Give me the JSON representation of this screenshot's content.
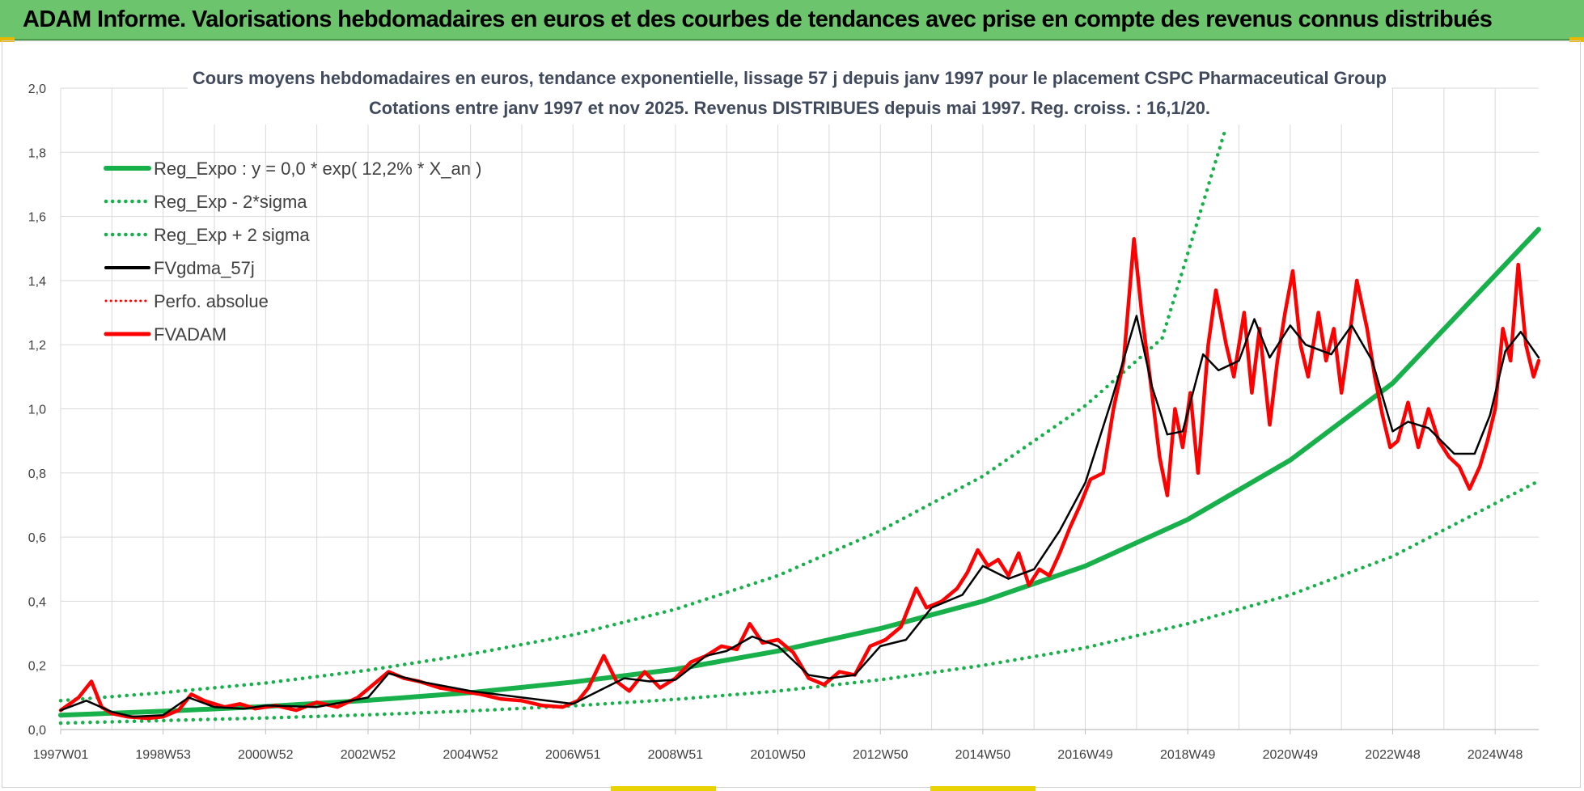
{
  "banner": {
    "title": "ADAM Informe. Valorisations hebdomadaires en euros et des courbes de tendances avec prise en compte des revenus connus distribués"
  },
  "colors": {
    "banner_bg": "#6cc46c",
    "trend_green": "#17b04a",
    "fvadam_red": "#ff0000",
    "smooth_black": "#000000",
    "grid": "#d9d9d9"
  },
  "chart_data": {
    "type": "line",
    "title_line1": "Cours moyens hebdomadaires en euros, tendance exponentielle, lissage 57 j depuis janv 1997  pour le placement CSPC Pharmaceutical Group",
    "title_line2": "Cotations entre janv 1997 et nov 2025. Revenus  DISTRIBUES depuis mai 1997.  Reg. croiss. : 16,1/20.",
    "ylim": [
      0,
      2.0
    ],
    "yticks": [
      "0,0",
      "0,2",
      "0,4",
      "0,6",
      "0,8",
      "1,0",
      "1,2",
      "1,4",
      "1,6",
      "1,8",
      "2,0"
    ],
    "xlim": [
      1997.0,
      2025.85
    ],
    "xticks": [
      {
        "label": "1997W01",
        "year": 1997.0
      },
      {
        "label": "1998W53",
        "year": 1999.0
      },
      {
        "label": "2000W52",
        "year": 2001.0
      },
      {
        "label": "2002W52",
        "year": 2003.0
      },
      {
        "label": "2004W52",
        "year": 2005.0
      },
      {
        "label": "2006W51",
        "year": 2007.0
      },
      {
        "label": "2008W51",
        "year": 2009.0
      },
      {
        "label": "2010W50",
        "year": 2011.0
      },
      {
        "label": "2012W50",
        "year": 2013.0
      },
      {
        "label": "2014W50",
        "year": 2015.0
      },
      {
        "label": "2016W49",
        "year": 2017.0
      },
      {
        "label": "2018W49",
        "year": 2019.0
      },
      {
        "label": "2020W49",
        "year": 2021.0
      },
      {
        "label": "2022W48",
        "year": 2023.0
      },
      {
        "label": "2024W48",
        "year": 2025.0
      }
    ],
    "legend": [
      {
        "key": "reg_expo",
        "label": "Reg_Expo : y = 0,0 * exp( 12,2% *  X_an )",
        "style": "solid-green"
      },
      {
        "key": "reg_minus",
        "label": "Reg_Exp - 2*sigma",
        "style": "dotted-green"
      },
      {
        "key": "reg_plus",
        "label": "Reg_Exp + 2 sigma",
        "style": "dotted-green"
      },
      {
        "key": "fvgdma",
        "label": "FVgdma_57j",
        "style": "solid-black"
      },
      {
        "key": "perfo",
        "label": "Perfo. absolue",
        "style": "dotted-red"
      },
      {
        "key": "fvadam",
        "label": "FVADAM",
        "style": "solid-red"
      }
    ],
    "series": [
      {
        "name": "Reg_Expo",
        "x": [
          1997.0,
          1999.0,
          2001.0,
          2003.0,
          2005.0,
          2007.0,
          2009.0,
          2011.0,
          2013.0,
          2015.0,
          2017.0,
          2019.0,
          2021.0,
          2023.0,
          2025.85
        ],
        "values": [
          0.045,
          0.057,
          0.072,
          0.091,
          0.115,
          0.148,
          0.188,
          0.245,
          0.315,
          0.4,
          0.51,
          0.655,
          0.84,
          1.08,
          1.56
        ]
      },
      {
        "name": "Reg_Exp + 2 sigma",
        "x": [
          1997.0,
          1999.0,
          2001.0,
          2003.0,
          2005.0,
          2007.0,
          2009.0,
          2011.0,
          2013.0,
          2015.0,
          2017.0,
          2018.5,
          2019.75
        ],
        "values": [
          0.09,
          0.115,
          0.145,
          0.185,
          0.235,
          0.295,
          0.375,
          0.48,
          0.62,
          0.79,
          1.01,
          1.22,
          1.88
        ]
      },
      {
        "name": "Reg_Exp - 2*sigma",
        "x": [
          1997.0,
          1999.0,
          2001.0,
          2003.0,
          2005.0,
          2007.0,
          2009.0,
          2011.0,
          2013.0,
          2015.0,
          2017.0,
          2019.0,
          2021.0,
          2023.0,
          2025.85
        ],
        "values": [
          0.02,
          0.028,
          0.036,
          0.046,
          0.058,
          0.074,
          0.094,
          0.12,
          0.155,
          0.2,
          0.255,
          0.33,
          0.42,
          0.54,
          0.775
        ]
      },
      {
        "name": "FVgdma_57j",
        "x": [
          1997.0,
          1997.5,
          1998.0,
          1998.4,
          1999.0,
          1999.5,
          2000.0,
          2000.6,
          2001.0,
          2002.0,
          2003.0,
          2003.4,
          2004.0,
          2005.0,
          2006.0,
          2007.0,
          2007.5,
          2008.0,
          2008.5,
          2009.0,
          2009.6,
          2010.0,
          2010.5,
          2011.0,
          2011.6,
          2012.0,
          2012.5,
          2013.0,
          2013.5,
          2014.0,
          2014.6,
          2015.0,
          2015.5,
          2016.0,
          2016.5,
          2017.0,
          2017.5,
          2018.0,
          2018.3,
          2018.6,
          2018.9,
          2019.3,
          2019.6,
          2020.0,
          2020.3,
          2020.6,
          2021.0,
          2021.3,
          2021.8,
          2022.2,
          2022.6,
          2023.0,
          2023.3,
          2023.7,
          2024.2,
          2024.6,
          2024.9,
          2025.2,
          2025.5,
          2025.85
        ],
        "values": [
          0.06,
          0.09,
          0.055,
          0.04,
          0.045,
          0.1,
          0.07,
          0.065,
          0.075,
          0.07,
          0.1,
          0.175,
          0.15,
          0.12,
          0.1,
          0.08,
          0.12,
          0.16,
          0.15,
          0.155,
          0.23,
          0.245,
          0.29,
          0.26,
          0.17,
          0.16,
          0.17,
          0.26,
          0.28,
          0.38,
          0.42,
          0.51,
          0.47,
          0.5,
          0.62,
          0.77,
          1.02,
          1.29,
          1.07,
          0.92,
          0.93,
          1.17,
          1.12,
          1.15,
          1.28,
          1.16,
          1.26,
          1.2,
          1.17,
          1.26,
          1.15,
          0.93,
          0.96,
          0.94,
          0.86,
          0.86,
          0.98,
          1.18,
          1.24,
          1.16
        ]
      },
      {
        "name": "FVADAM",
        "x": [
          1997.0,
          1997.35,
          1997.6,
          1997.8,
          1998.0,
          1998.3,
          1998.7,
          1999.0,
          1999.3,
          1999.55,
          1999.8,
          2000.2,
          2000.5,
          2000.8,
          2001.2,
          2001.6,
          2002.0,
          2002.4,
          2002.8,
          2003.1,
          2003.4,
          2003.7,
          2004.0,
          2004.4,
          2004.8,
          2005.2,
          2005.6,
          2006.0,
          2006.4,
          2006.8,
          2007.1,
          2007.3,
          2007.6,
          2007.85,
          2008.1,
          2008.4,
          2008.7,
          2009.0,
          2009.3,
          2009.6,
          2009.9,
          2010.2,
          2010.45,
          2010.7,
          2011.0,
          2011.3,
          2011.6,
          2011.9,
          2012.2,
          2012.5,
          2012.8,
          2013.1,
          2013.4,
          2013.7,
          2013.9,
          2014.2,
          2014.5,
          2014.7,
          2014.9,
          2015.1,
          2015.3,
          2015.5,
          2015.7,
          2015.9,
          2016.1,
          2016.3,
          2016.5,
          2016.7,
          2016.9,
          2017.1,
          2017.35,
          2017.55,
          2017.75,
          2017.95,
          2018.1,
          2018.3,
          2018.45,
          2018.6,
          2018.75,
          2018.9,
          2019.05,
          2019.2,
          2019.4,
          2019.55,
          2019.75,
          2019.9,
          2020.1,
          2020.25,
          2020.4,
          2020.6,
          2020.75,
          2020.9,
          2021.05,
          2021.2,
          2021.35,
          2021.55,
          2021.7,
          2021.85,
          2022.0,
          2022.15,
          2022.3,
          2022.5,
          2022.65,
          2022.8,
          2022.95,
          2023.1,
          2023.3,
          2023.5,
          2023.7,
          2023.9,
          2024.1,
          2024.3,
          2024.5,
          2024.7,
          2024.85,
          2025.0,
          2025.15,
          2025.3,
          2025.45,
          2025.6,
          2025.75,
          2025.85
        ],
        "values": [
          0.06,
          0.1,
          0.15,
          0.07,
          0.05,
          0.04,
          0.035,
          0.04,
          0.06,
          0.11,
          0.09,
          0.07,
          0.08,
          0.065,
          0.075,
          0.06,
          0.085,
          0.07,
          0.1,
          0.14,
          0.18,
          0.16,
          0.15,
          0.13,
          0.12,
          0.11,
          0.095,
          0.09,
          0.075,
          0.07,
          0.09,
          0.13,
          0.23,
          0.15,
          0.12,
          0.18,
          0.13,
          0.16,
          0.21,
          0.23,
          0.26,
          0.25,
          0.33,
          0.27,
          0.28,
          0.24,
          0.16,
          0.14,
          0.18,
          0.17,
          0.26,
          0.28,
          0.32,
          0.44,
          0.38,
          0.4,
          0.44,
          0.49,
          0.56,
          0.51,
          0.53,
          0.48,
          0.55,
          0.45,
          0.5,
          0.48,
          0.55,
          0.63,
          0.7,
          0.78,
          0.8,
          1.0,
          1.15,
          1.53,
          1.3,
          1.05,
          0.85,
          0.73,
          1.0,
          0.88,
          1.05,
          0.8,
          1.2,
          1.37,
          1.2,
          1.1,
          1.3,
          1.05,
          1.25,
          0.95,
          1.15,
          1.3,
          1.43,
          1.2,
          1.1,
          1.3,
          1.15,
          1.25,
          1.05,
          1.22,
          1.4,
          1.25,
          1.1,
          0.98,
          0.88,
          0.9,
          1.02,
          0.88,
          1.0,
          0.9,
          0.85,
          0.82,
          0.75,
          0.82,
          0.9,
          1.0,
          1.25,
          1.15,
          1.45,
          1.2,
          1.1,
          1.15
        ]
      }
    ]
  }
}
